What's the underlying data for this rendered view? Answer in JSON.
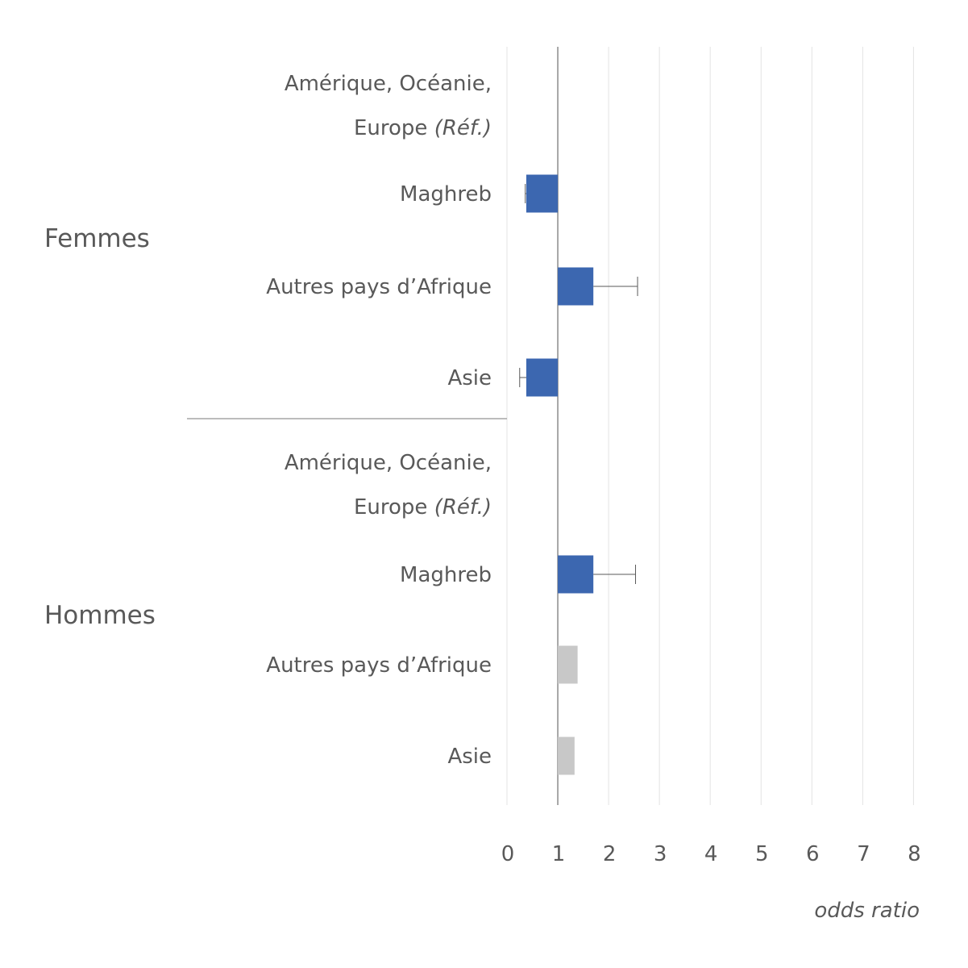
{
  "chart_data": {
    "type": "bar",
    "orientation": "horizontal",
    "xlabel": "odds ratio",
    "xlim": [
      0,
      8
    ],
    "xticks": [
      "0",
      "1",
      "2",
      "3",
      "4",
      "5",
      "6",
      "7",
      "8"
    ],
    "reference_line": 1,
    "grid": true,
    "colors": {
      "significant": "#3c67b0",
      "not_significant": "#c8c8c8",
      "error_bar": "#595959"
    },
    "groups": [
      {
        "name": "Femmes",
        "rows": [
          {
            "label": "Amérique, Océanie,",
            "label2": "Europe ",
            "label2_ref": "(Réf.)",
            "value": 1,
            "significant": false,
            "reference": true
          },
          {
            "label": "Maghreb",
            "value": 0.38,
            "err_low": 0.36,
            "err_high": 0.38,
            "significant": true
          },
          {
            "label": "Autres pays d’Afrique",
            "value": 1.7,
            "err_low": 1.7,
            "err_high": 2.57,
            "significant": true
          },
          {
            "label": "Asie",
            "value": 0.38,
            "err_low": 0.25,
            "err_high": 0.38,
            "significant": true
          }
        ]
      },
      {
        "name": "Hommes",
        "rows": [
          {
            "label": "Amérique, Océanie,",
            "label2": "Europe ",
            "label2_ref": "(Réf.)",
            "value": 1,
            "significant": false,
            "reference": true
          },
          {
            "label": "Maghreb",
            "value": 1.7,
            "err_low": 1.7,
            "err_high": 2.53,
            "significant": true
          },
          {
            "label": "Autres pays d’Afrique",
            "value": 1.39,
            "significant": false
          },
          {
            "label": "Asie",
            "value": 1.33,
            "significant": false
          }
        ]
      }
    ]
  }
}
